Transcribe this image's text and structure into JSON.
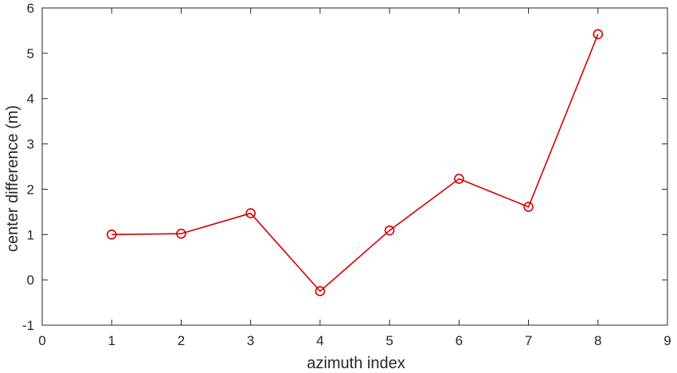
{
  "chart_data": {
    "type": "line",
    "title": "",
    "xlabel": "azimuth index",
    "ylabel": "center difference (m)",
    "xlim": [
      0,
      9
    ],
    "ylim": [
      -1,
      6
    ],
    "xticks": [
      0,
      1,
      2,
      3,
      4,
      5,
      6,
      7,
      8,
      9
    ],
    "yticks": [
      -1,
      0,
      1,
      2,
      3,
      4,
      5,
      6
    ],
    "grid": false,
    "legend": "none",
    "series": [
      {
        "color": "#d40000",
        "marker": "circle-open",
        "x": [
          1,
          2,
          3,
          4,
          5,
          6,
          7,
          8
        ],
        "y": [
          1.0,
          1.02,
          1.47,
          -0.25,
          1.09,
          2.23,
          1.61,
          5.42
        ]
      }
    ],
    "axis_color": "#262626"
  }
}
